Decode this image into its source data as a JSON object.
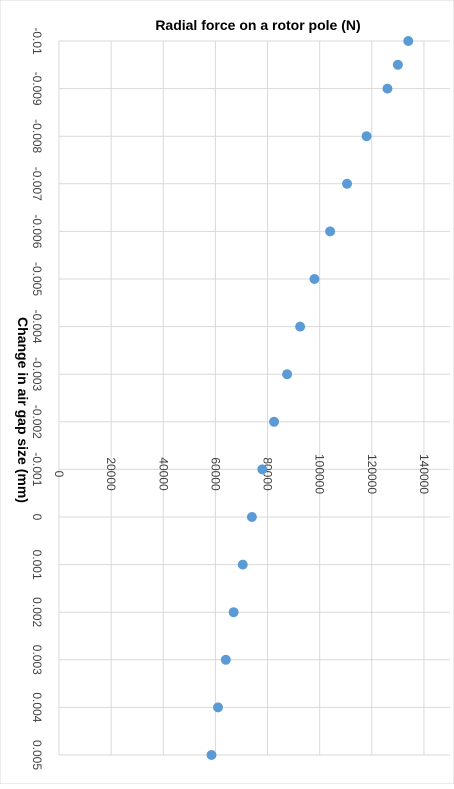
{
  "chart_data": {
    "type": "scatter",
    "title": "Radial force on a rotor pole (N)",
    "xlabel": "Change in air gap size (mm)",
    "ylabel": "",
    "orientation": "rotated-90",
    "xlim": [
      -0.01,
      0.005
    ],
    "ylim": [
      0,
      150000
    ],
    "grid": true,
    "legend": "none",
    "x_ticks": [
      "-0.01",
      "-0.009",
      "-0.008",
      "-0.007",
      "-0.006",
      "-0.005",
      "-0.004",
      "-0.003",
      "-0.002",
      "-0.001",
      "0",
      "0.001",
      "0.002",
      "0.003",
      "0.004",
      "0.005"
    ],
    "y_ticks": [
      "0",
      "20000",
      "40000",
      "60000",
      "80000",
      "100000",
      "120000",
      "140000"
    ],
    "series": [
      {
        "color": "#5b9bd5",
        "points": [
          {
            "x": -0.01,
            "y": 134000
          },
          {
            "x": -0.0095,
            "y": 130000
          },
          {
            "x": -0.009,
            "y": 126000
          },
          {
            "x": -0.008,
            "y": 118000
          },
          {
            "x": -0.007,
            "y": 110500
          },
          {
            "x": -0.006,
            "y": 104000
          },
          {
            "x": -0.005,
            "y": 98000
          },
          {
            "x": -0.004,
            "y": 92500
          },
          {
            "x": -0.003,
            "y": 87500
          },
          {
            "x": -0.002,
            "y": 82500
          },
          {
            "x": -0.001,
            "y": 78000
          },
          {
            "x": 0.0,
            "y": 74000
          },
          {
            "x": 0.001,
            "y": 70500
          },
          {
            "x": 0.002,
            "y": 67000
          },
          {
            "x": 0.003,
            "y": 64000
          },
          {
            "x": 0.004,
            "y": 61000
          },
          {
            "x": 0.005,
            "y": 58500
          }
        ]
      }
    ]
  }
}
